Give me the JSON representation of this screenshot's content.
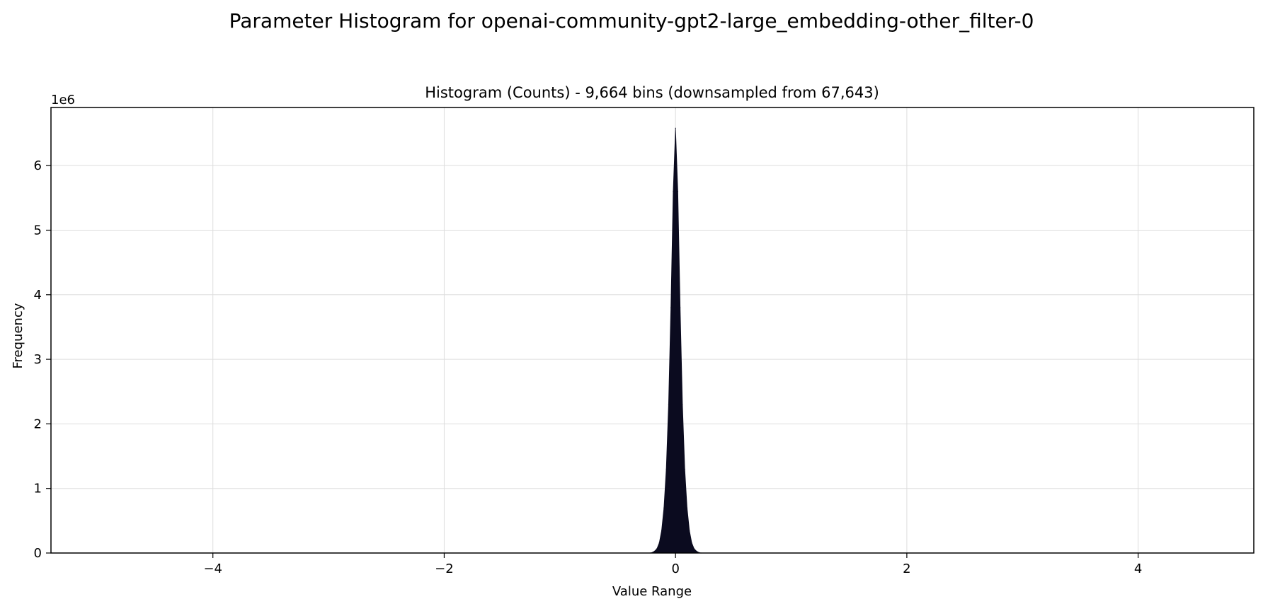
{
  "suptitle": "Parameter Histogram for openai-community-gpt2-large_embedding-other_filter-0",
  "chart_data": {
    "type": "area",
    "title": "Histogram (Counts) - 9,664 bins (downsampled from 67,643)",
    "xlabel": "Value Range",
    "ylabel": "Frequency",
    "y_offset_label": "1e6",
    "xlim": [
      -5.4,
      5.0
    ],
    "ylim": [
      0,
      6.9
    ],
    "y_scale_factor": 1000000,
    "xticks": [
      -4,
      -2,
      0,
      2,
      4
    ],
    "xtick_labels": [
      "−4",
      "−2",
      "0",
      "2",
      "4"
    ],
    "yticks": [
      0,
      1,
      2,
      3,
      4,
      5,
      6
    ],
    "ytick_labels": [
      "0",
      "1",
      "2",
      "3",
      "4",
      "5",
      "6"
    ],
    "grid": true,
    "legend": "none",
    "series": [
      {
        "color": "#0b0b1f",
        "x": [
          -0.22,
          -0.2,
          -0.18,
          -0.16,
          -0.14,
          -0.12,
          -0.1,
          -0.08,
          -0.06,
          -0.04,
          -0.02,
          0.0,
          0.02,
          0.04,
          0.06,
          0.08,
          0.1,
          0.12,
          0.14,
          0.16,
          0.18,
          0.2,
          0.22
        ],
        "y": [
          0.0,
          0.01,
          0.03,
          0.07,
          0.16,
          0.35,
          0.7,
          1.3,
          2.3,
          3.8,
          5.6,
          6.58,
          5.6,
          3.8,
          2.3,
          1.3,
          0.7,
          0.35,
          0.16,
          0.07,
          0.03,
          0.01,
          0.0
        ]
      }
    ]
  }
}
